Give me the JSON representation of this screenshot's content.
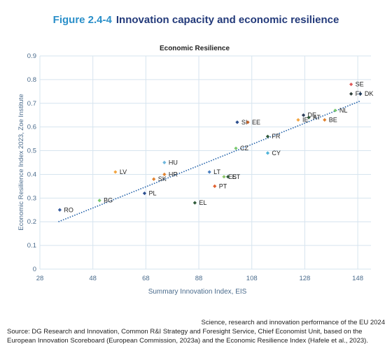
{
  "figure": {
    "number": "Figure 2.4-4",
    "title": "Innovation capacity and economic resilience"
  },
  "colors": {
    "title_number": "#2a8fc9",
    "title_text": "#233a7a",
    "axis_text": "#4a6b8c",
    "grid": "#d6e4ef",
    "trend": "#1f5fa8"
  },
  "chart_data": {
    "type": "scatter",
    "title": "Economic Resilience",
    "xlabel": "Summary Innovation Index, EIS",
    "ylabel": "Economic Resilience Index 2023, Zoe Institute",
    "xlim": [
      28,
      153
    ],
    "ylim": [
      0,
      0.9
    ],
    "xticks": [
      28,
      48,
      68,
      88,
      108,
      128,
      148
    ],
    "yticks": [
      0,
      0.1,
      0.2,
      0.3,
      0.4,
      0.5,
      0.6,
      0.7,
      0.8,
      0.9
    ],
    "ytick_labels": [
      "0",
      "0.1",
      "0.2",
      "0.3",
      "0.4",
      "0.5",
      "0.6",
      "0.7",
      "0.8",
      "0.9"
    ],
    "grid": true,
    "trendline": {
      "x": [
        35,
        149
      ],
      "y": [
        0.2,
        0.71
      ]
    },
    "points": [
      {
        "label": "RO",
        "x": 35.5,
        "y": 0.25,
        "color": "#3b5fa0"
      },
      {
        "label": "BG",
        "x": 50.5,
        "y": 0.29,
        "color": "#7bc96f"
      },
      {
        "label": "LV",
        "x": 56.5,
        "y": 0.41,
        "color": "#f2a541"
      },
      {
        "label": "PL",
        "x": 67.5,
        "y": 0.32,
        "color": "#2c4f8f"
      },
      {
        "label": "SK",
        "x": 71.0,
        "y": 0.38,
        "color": "#e0822f"
      },
      {
        "label": "HR",
        "x": 75.0,
        "y": 0.4,
        "color": "#e0822f"
      },
      {
        "label": "HU",
        "x": 75.0,
        "y": 0.45,
        "color": "#6fb7dd"
      },
      {
        "label": "EL",
        "x": 86.5,
        "y": 0.28,
        "color": "#2f5a3a"
      },
      {
        "label": "LT",
        "x": 92.0,
        "y": 0.41,
        "color": "#4a7fc1"
      },
      {
        "label": "PT",
        "x": 94.0,
        "y": 0.35,
        "color": "#e0602f"
      },
      {
        "label": "ES",
        "x": 97.5,
        "y": 0.39,
        "color": "#8cc46a"
      },
      {
        "label": "ET",
        "x": 99.0,
        "y": 0.39,
        "color": "#2f5a3a"
      },
      {
        "label": "CZ",
        "x": 102.0,
        "y": 0.51,
        "color": "#7bc96f"
      },
      {
        "label": "SI",
        "x": 102.5,
        "y": 0.62,
        "color": "#2c4f8f"
      },
      {
        "label": "EE",
        "x": 106.5,
        "y": 0.62,
        "color": "#c4632a"
      },
      {
        "label": "CY",
        "x": 114.0,
        "y": 0.49,
        "color": "#4fb3d9"
      },
      {
        "label": "FR",
        "x": 114.0,
        "y": 0.56,
        "color": "#2f5a3a"
      },
      {
        "label": "IE",
        "x": 125.5,
        "y": 0.63,
        "color": "#f2a541"
      },
      {
        "label": "DE",
        "x": 127.5,
        "y": 0.65,
        "color": "#2f3f5a"
      },
      {
        "label": "AT",
        "x": 129.5,
        "y": 0.64,
        "color": "#2f5a3a"
      },
      {
        "label": "NL",
        "x": 139.5,
        "y": 0.67,
        "color": "#7bc96f"
      },
      {
        "label": "BE",
        "x": 135.5,
        "y": 0.63,
        "color": "#e0822f"
      },
      {
        "label": "SE",
        "x": 145.5,
        "y": 0.78,
        "color": "#e05a5a"
      },
      {
        "label": "FI",
        "x": 145.5,
        "y": 0.74,
        "color": "#2f3f3a"
      },
      {
        "label": "DK",
        "x": 149.0,
        "y": 0.74,
        "color": "#1f3a5a"
      }
    ]
  },
  "footer": {
    "publication": "Science, research and innovation performance of the EU 2024",
    "source": "Source: DG Research and Innovation, Common R&I Strategy and Foresight Service, Chief Economist Unit, based on the European Innovation Scoreboard (European Commission, 2023a)  and the Economic Resilience Index (Hafele et al., 2023)."
  }
}
